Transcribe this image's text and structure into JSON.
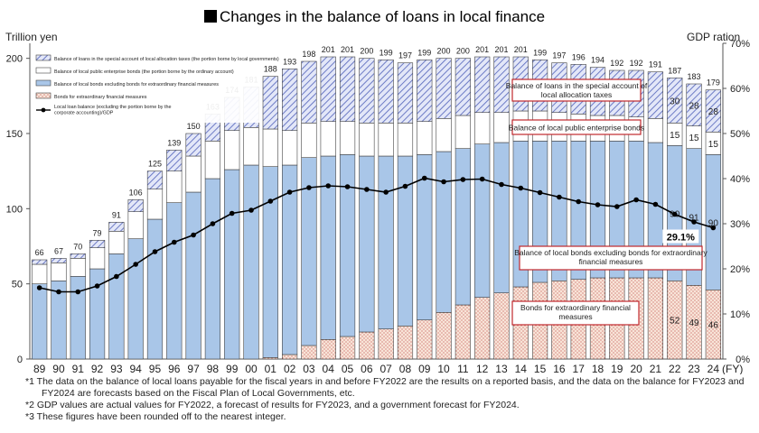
{
  "chart_data": {
    "type": "bar",
    "title": "Changes in the balance of loans in local finance",
    "y_left_label": "Trillion yen",
    "y_right_label": "GDP ration",
    "x_unit_label": "(FY)",
    "ylim_left": [
      0,
      210
    ],
    "ylim_right": [
      0,
      70
    ],
    "yticks_left": [
      "0",
      "50",
      "100",
      "150",
      "200"
    ],
    "yticks_right": [
      "0%",
      "10%",
      "20%",
      "30%",
      "40%",
      "50%",
      "60%",
      "70%"
    ],
    "yticks_left_values": [
      0,
      50,
      100,
      150,
      200
    ],
    "yticks_right_values": [
      0,
      10,
      20,
      30,
      40,
      50,
      60,
      70
    ],
    "categories": [
      "89",
      "90",
      "91",
      "92",
      "93",
      "94",
      "95",
      "96",
      "97",
      "98",
      "99",
      "00",
      "01",
      "02",
      "03",
      "04",
      "05",
      "06",
      "07",
      "08",
      "09",
      "10",
      "11",
      "12",
      "13",
      "14",
      "15",
      "16",
      "17",
      "18",
      "19",
      "20",
      "21",
      "22",
      "23",
      "24"
    ],
    "totals": [
      66,
      67,
      70,
      79,
      91,
      106,
      125,
      139,
      150,
      163,
      174,
      181,
      188,
      193,
      198,
      201,
      201,
      200,
      199,
      197,
      199,
      200,
      200,
      201,
      201,
      201,
      199,
      197,
      196,
      194,
      192,
      192,
      191,
      187,
      183,
      179
    ],
    "series": [
      {
        "name": "Bonds for extraordinary financial measures",
        "color": "#f6ddd0",
        "pattern": "dots",
        "values": [
          0,
          0,
          0,
          0,
          0,
          0,
          0,
          0,
          0,
          0,
          0,
          0,
          1,
          3,
          9,
          13,
          15,
          18,
          20,
          22,
          26,
          31,
          36,
          41,
          44,
          48,
          51,
          52,
          53,
          54,
          54,
          54,
          54,
          52,
          49,
          46
        ]
      },
      {
        "name": "Balance of local bonds excluding bonds for extraordinary financial measures",
        "color": "#a9c6e8",
        "pattern": "solid",
        "values": [
          50,
          52,
          55,
          60,
          70,
          80,
          93,
          104,
          111,
          120,
          126,
          129,
          127,
          126,
          125,
          122,
          121,
          117,
          115,
          113,
          110,
          107,
          104,
          102,
          100,
          97,
          94,
          93,
          92,
          91,
          91,
          91,
          90,
          90,
          91,
          90
        ]
      },
      {
        "name": "Balance of local public enterprise bonds (the portion borne by the ordinary account)",
        "color": "#ffffff",
        "pattern": "white",
        "values": [
          13,
          12,
          12,
          14,
          15,
          18,
          20,
          21,
          24,
          25,
          26,
          25,
          25,
          23,
          23,
          23,
          22,
          22,
          22,
          22,
          22,
          22,
          22,
          21,
          20,
          20,
          20,
          19,
          18,
          17,
          17,
          16,
          16,
          15,
          15,
          15
        ]
      },
      {
        "name": "Balance of loans in the special account of local allocation taxes (the portion borne by local governments)",
        "color": "#c7cef0",
        "pattern": "hatch",
        "values": [
          3,
          3,
          3,
          5,
          6,
          8,
          12,
          14,
          15,
          18,
          22,
          27,
          35,
          41,
          41,
          43,
          43,
          43,
          42,
          40,
          41,
          40,
          38,
          37,
          37,
          36,
          34,
          33,
          33,
          32,
          30,
          31,
          31,
          30,
          28,
          28
        ]
      }
    ],
    "gdp_ratio_series": {
      "name": "Local loan balance (excluding the portion borne by the corporate accounting)/GDP",
      "values": [
        15.8,
        14.9,
        14.9,
        16.2,
        18.3,
        21.0,
        23.8,
        25.9,
        27.5,
        30.0,
        32.3,
        33.0,
        35.0,
        37.0,
        38.0,
        38.4,
        38.2,
        37.6,
        37.0,
        38.3,
        40.1,
        39.3,
        39.8,
        39.9,
        38.7,
        37.9,
        36.9,
        35.9,
        34.9,
        34.2,
        33.8,
        35.3,
        34.3,
        32.1,
        30.4,
        29.1
      ]
    },
    "value_labels": {
      "indices": [
        33,
        34,
        35
      ],
      "bonds": [
        "52",
        "49",
        "46"
      ],
      "excl": [
        "90",
        "91",
        "90"
      ],
      "enterprise": [
        "15",
        "15",
        "15"
      ],
      "special": [
        "30",
        "28",
        "28"
      ]
    },
    "last_ratio_label": "29.1%",
    "legend_entries": [
      "Balance of loans in the special account of local allocation taxes (the portion borne by local governments)",
      "Balance of local public enterprise bonds (the portion borne by the ordinary account)",
      "Balance of local bonds excluding bonds for extraordinary financial measures",
      "Bonds for extraordinary financial measures",
      "Local loan balance (excluding the portion borne by the corporate accounting)/GDP"
    ],
    "annotations": [
      "Balance of loans in the special account of local allocation taxes",
      "Balance of local public enterprise bonds",
      "Balance of local bonds excluding bonds for extraordinary financial measures",
      "Bonds for extraordinary financial measures"
    ],
    "legend_placement": "top-left",
    "grid": false
  },
  "notes": {
    "n1a": "*1 The data on the balance of local loans payable for the fiscal years in and before FY2022 are the results on a reported basis, and the data on the balance for FY2023 and",
    "n1b": "FY2024 are forecasts based on the Fiscal Plan of Local Governments, etc.",
    "n2": "*2 GDP values are actual values for FY2022, a forecast of results for FY2023, and a government forecast for FY2024.",
    "n3": "*3 These figures have been rounded off to the nearest integer."
  }
}
